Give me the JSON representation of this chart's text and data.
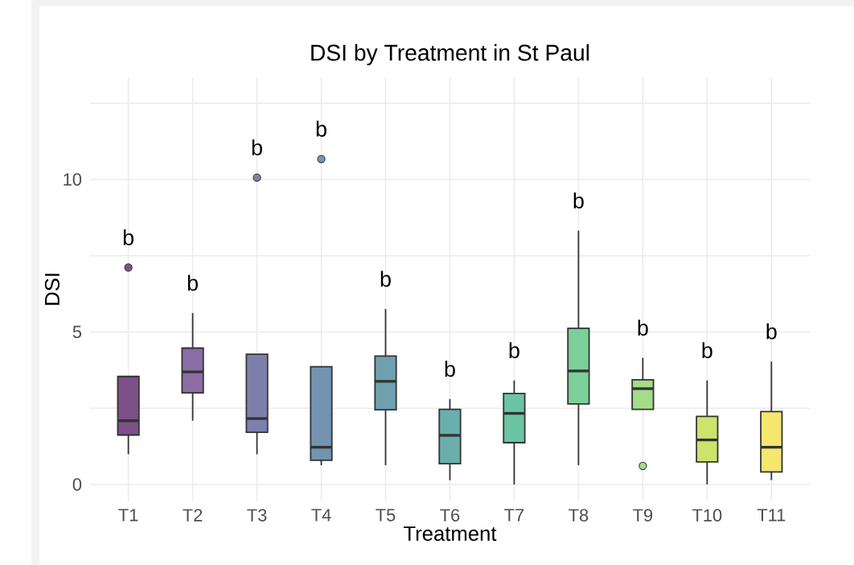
{
  "chart_data": {
    "type": "box",
    "title": "DSI by Treatment in St Paul",
    "xlabel": "Treatment",
    "ylabel": "DSI",
    "categories": [
      "T1",
      "T2",
      "T3",
      "T4",
      "T5",
      "T6",
      "T7",
      "T8",
      "T9",
      "T10",
      "T11"
    ],
    "boxes": [
      {
        "low": 0.99,
        "q1": 1.62,
        "median": 2.09,
        "q3": 3.54,
        "high": 3.54,
        "outliers": [
          7.11
        ]
      },
      {
        "low": 2.09,
        "q1": 3.0,
        "median": 3.69,
        "q3": 4.47,
        "high": 5.62
      },
      {
        "low": 0.99,
        "q1": 1.71,
        "median": 2.16,
        "q3": 4.27,
        "high": 4.27,
        "outliers": [
          10.06
        ]
      },
      {
        "low": 0.63,
        "q1": 0.79,
        "median": 1.22,
        "q3": 3.86,
        "high": 3.86,
        "outliers": [
          10.67
        ]
      },
      {
        "low": 0.63,
        "q1": 2.45,
        "median": 3.38,
        "q3": 4.21,
        "high": 5.75
      },
      {
        "low": 0.14,
        "q1": 0.68,
        "median": 1.61,
        "q3": 2.46,
        "high": 2.8
      },
      {
        "low": 0,
        "q1": 1.37,
        "median": 2.33,
        "q3": 2.98,
        "high": 3.41
      },
      {
        "low": 0.63,
        "q1": 2.64,
        "median": 3.72,
        "q3": 5.12,
        "high": 8.32
      },
      {
        "low": 2.46,
        "q1": 2.46,
        "median": 3.14,
        "q3": 3.43,
        "high": 4.15,
        "outliers": [
          0.61
        ]
      },
      {
        "low": 0,
        "q1": 0.74,
        "median": 1.46,
        "q3": 2.23,
        "high": 3.41
      },
      {
        "low": 0.14,
        "q1": 0.41,
        "median": 1.22,
        "q3": 2.39,
        "high": 4.03
      }
    ],
    "colors": [
      "#7d5088",
      "#8a6ea5",
      "#7e80ab",
      "#7294b0",
      "#6fa0b0",
      "#6aafab",
      "#6cc4a4",
      "#7ccf98",
      "#a5dc88",
      "#cde36b",
      "#f5e66e"
    ],
    "ylim": [
      -0.55,
      13.35
    ],
    "yticks": [
      0,
      {
        "value": 2.5,
        "label": null
      },
      5,
      {
        "value": 7.5,
        "label": null
      },
      10,
      {
        "value": 12.5,
        "label": null
      }
    ],
    "grid": true,
    "annotations": [
      "b",
      "b",
      "b",
      "b",
      "b",
      "b",
      "b",
      "b",
      "b",
      "b",
      "b"
    ]
  }
}
